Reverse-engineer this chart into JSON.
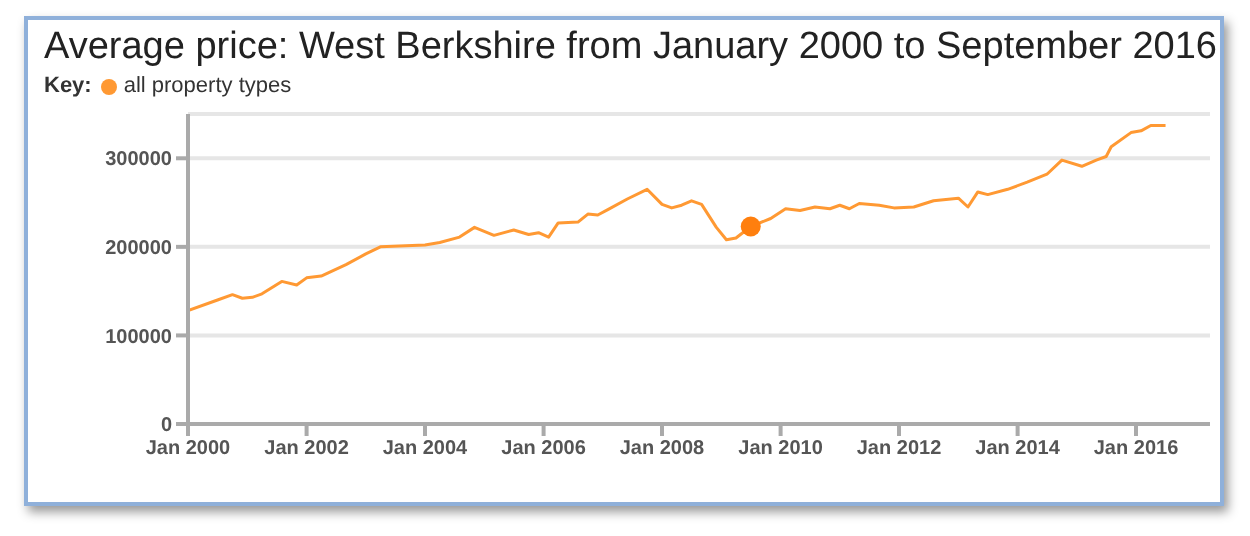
{
  "chart_data": {
    "type": "line",
    "title": "Average price: West Berkshire from January 2000 to September 2016",
    "legend_title": "Key:",
    "legend": "top left",
    "grid": "y",
    "marker": "none",
    "line_style": "solid",
    "xlim": [
      "2000-01",
      "2017-04"
    ],
    "ylim": [
      0,
      350000
    ],
    "yticks": [
      0,
      100000,
      200000,
      300000
    ],
    "xticks": [
      {
        "value": "2000-01",
        "label": "Jan 2000"
      },
      {
        "value": "2002-01",
        "label": "Jan 2002"
      },
      {
        "value": "2004-01",
        "label": "Jan 2004"
      },
      {
        "value": "2006-01",
        "label": "Jan 2006"
      },
      {
        "value": "2008-01",
        "label": "Jan 2008"
      },
      {
        "value": "2010-01",
        "label": "Jan 2010"
      },
      {
        "value": "2012-01",
        "label": "Jan 2012"
      },
      {
        "value": "2014-01",
        "label": "Jan 2014"
      },
      {
        "value": "2016-01",
        "label": "Jan 2016"
      }
    ],
    "series": [
      {
        "name": "all property types",
        "color": "#ff9933",
        "x": [
          "2000-01",
          "2000-07",
          "2000-10",
          "2000-12",
          "2001-02",
          "2001-04",
          "2001-08",
          "2001-11",
          "2002-01",
          "2002-04",
          "2002-09",
          "2003-01",
          "2003-04",
          "2004-01",
          "2004-04",
          "2004-08",
          "2004-11",
          "2005-03",
          "2005-07",
          "2005-10",
          "2005-12",
          "2006-02",
          "2006-04",
          "2006-08",
          "2006-10",
          "2006-12",
          "2007-02",
          "2007-06",
          "2007-10",
          "2008-01",
          "2008-03",
          "2008-05",
          "2008-07",
          "2008-09",
          "2008-12",
          "2009-02",
          "2009-04",
          "2009-07",
          "2009-11",
          "2010-02",
          "2010-05",
          "2010-08",
          "2010-11",
          "2011-01",
          "2011-03",
          "2011-05",
          "2011-09",
          "2011-12",
          "2012-04",
          "2012-08",
          "2013-01",
          "2013-03",
          "2013-05",
          "2013-07",
          "2013-11",
          "2014-03",
          "2014-07",
          "2014-10",
          "2015-02",
          "2015-05",
          "2015-07",
          "2015-08",
          "2015-12",
          "2016-02",
          "2016-04",
          "2016-07"
        ],
        "values": [
          128000,
          140000,
          146000,
          142000,
          143000,
          147000,
          161000,
          157000,
          165000,
          167000,
          180000,
          192000,
          200000,
          202000,
          205000,
          211000,
          222000,
          213000,
          219000,
          214000,
          216000,
          211000,
          227000,
          228000,
          237000,
          236000,
          242000,
          254000,
          265000,
          248000,
          244000,
          247000,
          252000,
          248000,
          222000,
          208000,
          210000,
          223000,
          232000,
          243000,
          241000,
          245000,
          243000,
          247000,
          243000,
          249000,
          247000,
          244000,
          245000,
          252000,
          255000,
          245000,
          262000,
          259000,
          265000,
          273000,
          282000,
          298000,
          291000,
          298000,
          302000,
          313000,
          329000,
          331000,
          337000,
          337000
        ]
      },
      {
        "type": "scatter",
        "color": "#ff7f0e",
        "marker": "circle",
        "x": [
          "2009-07"
        ],
        "values": [
          223000
        ]
      }
    ]
  }
}
